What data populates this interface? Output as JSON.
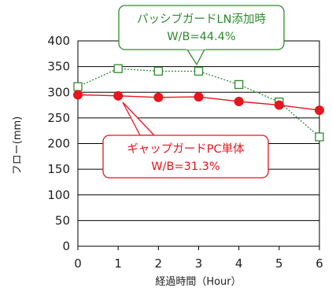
{
  "chart_data": {
    "type": "line",
    "xlabel": "経過時間（Hour）",
    "ylabel": "フロー(mm)",
    "x": [
      0,
      1,
      2,
      3,
      4,
      5,
      6
    ],
    "xlim": [
      0,
      6
    ],
    "ylim": [
      0,
      400
    ],
    "yticks": [
      0,
      50,
      100,
      150,
      200,
      250,
      300,
      350,
      400
    ],
    "grid": "horizontal",
    "series": [
      {
        "name": "パッシブガードLN添加時",
        "subtitle": "W/B=44.4%",
        "color": "#2e8b2e",
        "line_style": "dotted",
        "marker": "open-square",
        "values": [
          311,
          346,
          341,
          341,
          315,
          281,
          213
        ]
      },
      {
        "name": "ギャップガードPC単体",
        "subtitle": "W/B=31.3%",
        "color": "#e8141e",
        "line_style": "solid",
        "marker": "filled-circle",
        "values": [
          295,
          293,
          290,
          291,
          282,
          275,
          265
        ]
      }
    ]
  }
}
